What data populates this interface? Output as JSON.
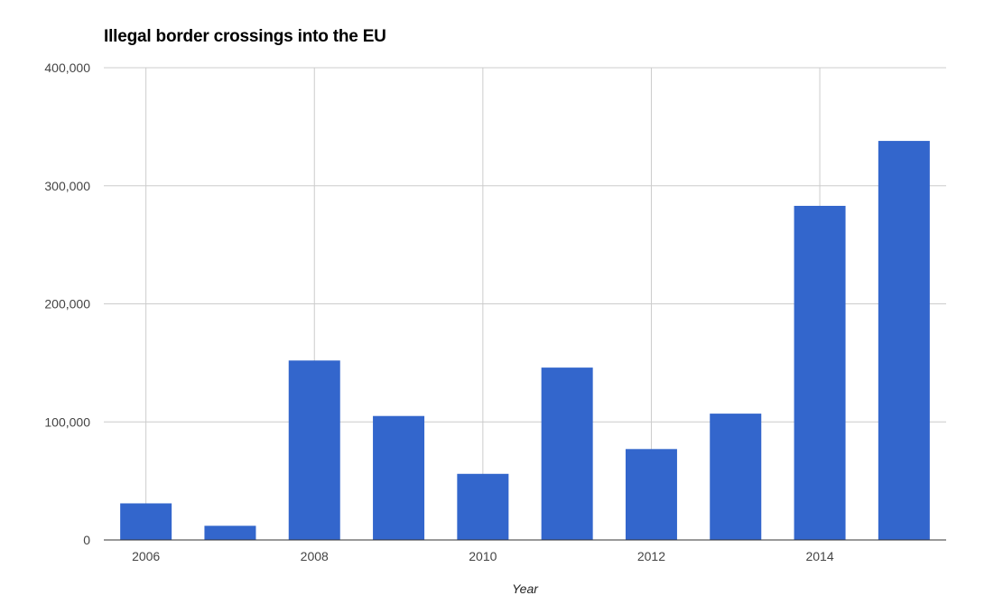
{
  "chart_data": {
    "type": "bar",
    "title": "Illegal border crossings into the EU",
    "xlabel": "Year",
    "ylabel": "",
    "categories": [
      "2006",
      "2007",
      "2008",
      "2009",
      "2010",
      "2011",
      "2012",
      "2013",
      "2014",
      "2015"
    ],
    "x_tick_labels": [
      "2006",
      "2008",
      "2010",
      "2012",
      "2014"
    ],
    "values": [
      31000,
      12000,
      152000,
      105000,
      56000,
      146000,
      77000,
      107000,
      283000,
      338000
    ],
    "ylim": [
      0,
      400000
    ],
    "y_ticks": [
      0,
      100000,
      200000,
      300000,
      400000
    ],
    "y_tick_labels": [
      "0",
      "100,000",
      "200,000",
      "300,000",
      "400,000"
    ],
    "grid": true,
    "legend": "none",
    "bar_color": "#3366cc",
    "grid_color": "#cccccc",
    "axis_color": "#333333"
  }
}
